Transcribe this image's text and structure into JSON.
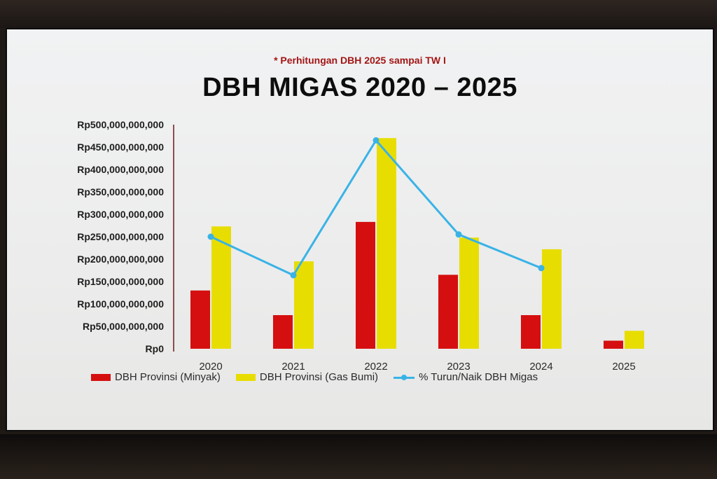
{
  "header": {
    "note": "* Perhitungan DBH 2025 sampai TW I",
    "title": "DBH MIGAS 2020 – 2025"
  },
  "colors": {
    "minyak": "#d50f0f",
    "gas_bumi": "#e8dd00",
    "trend_line": "#39b3e6"
  },
  "chart_data": {
    "type": "bar",
    "title": "DBH MIGAS 2020 – 2025",
    "categories": [
      "2020",
      "2021",
      "2022",
      "2023",
      "2024",
      "2025"
    ],
    "ylim": [
      0,
      500000000000
    ],
    "y_tick_labels": [
      "Rp0",
      "Rp50,000,000,000",
      "Rp100,000,000,000",
      "Rp150,000,000,000",
      "Rp200,000,000,000",
      "Rp250,000,000,000",
      "Rp300,000,000,000",
      "Rp350,000,000,000",
      "Rp400,000,000,000",
      "Rp450,000,000,000",
      "Rp500,000,000,000"
    ],
    "series": [
      {
        "name": "DBH Provinsi (Minyak)",
        "type": "bar",
        "values": [
          130000000000,
          75000000000,
          283000000000,
          165000000000,
          75000000000,
          18000000000
        ]
      },
      {
        "name": "DBH Provinsi (Gas Bumi)",
        "type": "bar",
        "values": [
          273000000000,
          195000000000,
          470000000000,
          248000000000,
          222000000000,
          40000000000
        ]
      },
      {
        "name": "% Turun/Naik DBH Migas",
        "type": "line",
        "values": [
          250000000000,
          164000000000,
          465000000000,
          255000000000,
          180000000000,
          null
        ]
      }
    ],
    "grid": false,
    "legend_position": "bottom"
  }
}
